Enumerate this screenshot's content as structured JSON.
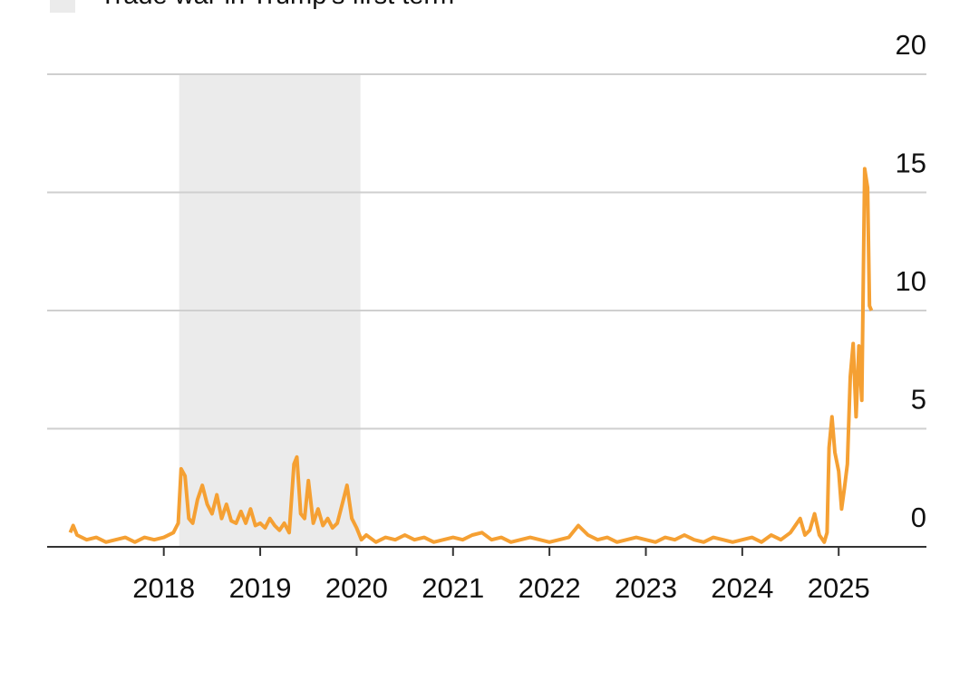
{
  "chart_data": {
    "type": "line",
    "shaded_regions": [
      {
        "label": "Trade war in Trump's first term",
        "start": 2018.16,
        "end": 2020.04,
        "color": "#ebebeb"
      }
    ],
    "x": [
      2017.03,
      2017.06,
      2017.1,
      2017.2,
      2017.3,
      2017.4,
      2017.5,
      2017.6,
      2017.7,
      2017.8,
      2017.9,
      2018.0,
      2018.1,
      2018.15,
      2018.18,
      2018.22,
      2018.26,
      2018.3,
      2018.35,
      2018.4,
      2018.45,
      2018.5,
      2018.55,
      2018.6,
      2018.65,
      2018.7,
      2018.75,
      2018.8,
      2018.85,
      2018.9,
      2018.95,
      2019.0,
      2019.05,
      2019.1,
      2019.15,
      2019.2,
      2019.25,
      2019.3,
      2019.35,
      2019.38,
      2019.42,
      2019.46,
      2019.5,
      2019.55,
      2019.6,
      2019.65,
      2019.7,
      2019.75,
      2019.8,
      2019.85,
      2019.9,
      2019.95,
      2020.0,
      2020.05,
      2020.1,
      2020.2,
      2020.3,
      2020.4,
      2020.5,
      2020.6,
      2020.7,
      2020.8,
      2020.9,
      2021.0,
      2021.1,
      2021.2,
      2021.3,
      2021.4,
      2021.5,
      2021.6,
      2021.7,
      2021.8,
      2021.9,
      2022.0,
      2022.1,
      2022.2,
      2022.3,
      2022.4,
      2022.5,
      2022.6,
      2022.7,
      2022.8,
      2022.9,
      2023.0,
      2023.1,
      2023.2,
      2023.3,
      2023.4,
      2023.5,
      2023.6,
      2023.7,
      2023.8,
      2023.9,
      2024.0,
      2024.1,
      2024.2,
      2024.3,
      2024.4,
      2024.5,
      2024.6,
      2024.65,
      2024.7,
      2024.75,
      2024.8,
      2024.85,
      2024.88,
      2024.9,
      2024.93,
      2024.96,
      2025.0,
      2025.03,
      2025.06,
      2025.09,
      2025.12,
      2025.15,
      2025.18,
      2025.21,
      2025.24,
      2025.27,
      2025.3,
      2025.32,
      2025.34
    ],
    "series": [
      {
        "color": "#f5a033",
        "values": [
          0.6,
          0.9,
          0.5,
          0.3,
          0.4,
          0.2,
          0.3,
          0.4,
          0.2,
          0.4,
          0.3,
          0.4,
          0.6,
          1.0,
          3.3,
          3.0,
          1.2,
          1.0,
          2.0,
          2.6,
          1.8,
          1.4,
          2.2,
          1.2,
          1.8,
          1.1,
          1.0,
          1.5,
          1.0,
          1.6,
          0.9,
          1.0,
          0.8,
          1.2,
          0.9,
          0.7,
          1.0,
          0.6,
          3.5,
          3.8,
          1.4,
          1.2,
          2.8,
          1.0,
          1.6,
          0.9,
          1.2,
          0.8,
          1.0,
          1.8,
          2.6,
          1.2,
          0.8,
          0.3,
          0.5,
          0.2,
          0.4,
          0.3,
          0.5,
          0.3,
          0.4,
          0.2,
          0.3,
          0.4,
          0.3,
          0.5,
          0.6,
          0.3,
          0.4,
          0.2,
          0.3,
          0.4,
          0.3,
          0.2,
          0.3,
          0.4,
          0.9,
          0.5,
          0.3,
          0.4,
          0.2,
          0.3,
          0.4,
          0.3,
          0.2,
          0.4,
          0.3,
          0.5,
          0.3,
          0.2,
          0.4,
          0.3,
          0.2,
          0.3,
          0.4,
          0.2,
          0.5,
          0.3,
          0.6,
          1.2,
          0.5,
          0.7,
          1.4,
          0.5,
          0.2,
          0.6,
          4.2,
          5.5,
          4.0,
          3.2,
          1.6,
          2.5,
          3.5,
          7.2,
          8.6,
          5.5,
          8.5,
          6.2,
          16.0,
          15.2,
          10.2,
          10.0
        ]
      }
    ],
    "xlim": [
      2016.79,
      2025.91
    ],
    "xticks": [
      2018,
      2019,
      2020,
      2021,
      2022,
      2023,
      2024,
      2025
    ],
    "ylim": [
      0,
      20
    ],
    "yticks": [
      0,
      5,
      10,
      15,
      20
    ],
    "grid": true
  }
}
